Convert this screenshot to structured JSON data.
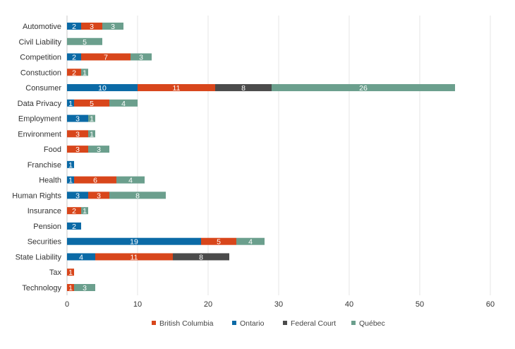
{
  "chart_data": {
    "type": "bar",
    "orientation": "horizontal",
    "stacked": true,
    "categories": [
      "Automotive",
      "Civil Liability",
      "Competition",
      "Constuction",
      "Consumer",
      "Data Privacy",
      "Employment",
      "Environment",
      "Food",
      "Franchise",
      "Health",
      "Human Rights",
      "Insurance",
      "Pension",
      "Securities",
      "State Liability",
      "Tax",
      "Technology"
    ],
    "series": [
      {
        "name": "Ontario",
        "color": "#0b6aa6",
        "values": [
          2,
          0,
          2,
          0,
          10,
          1,
          3,
          0,
          0,
          1,
          1,
          3,
          0,
          2,
          19,
          4,
          0,
          0
        ]
      },
      {
        "name": "British Columbia",
        "color": "#d8461b",
        "values": [
          3,
          0,
          7,
          2,
          11,
          5,
          0,
          3,
          3,
          0,
          6,
          3,
          2,
          0,
          5,
          11,
          1,
          1
        ]
      },
      {
        "name": "Federal Court",
        "color": "#4b4b4b",
        "values": [
          0,
          0,
          0,
          0,
          8,
          0,
          0,
          0,
          0,
          0,
          0,
          0,
          0,
          0,
          0,
          8,
          0,
          0
        ]
      },
      {
        "name": "Québec",
        "color": "#6b9f8d",
        "values": [
          3,
          5,
          3,
          1,
          26,
          4,
          1,
          1,
          3,
          0,
          4,
          8,
          1,
          0,
          4,
          0,
          0,
          3
        ]
      }
    ],
    "legend_order": [
      "British Columbia",
      "Ontario",
      "Federal Court",
      "Québec"
    ],
    "xlim": [
      0,
      60
    ],
    "xticks": [
      0,
      10,
      20,
      30,
      40,
      50,
      60
    ],
    "grid": true,
    "data_labels": true,
    "legend_position": "bottom",
    "title": "",
    "xlabel": "",
    "ylabel": ""
  }
}
